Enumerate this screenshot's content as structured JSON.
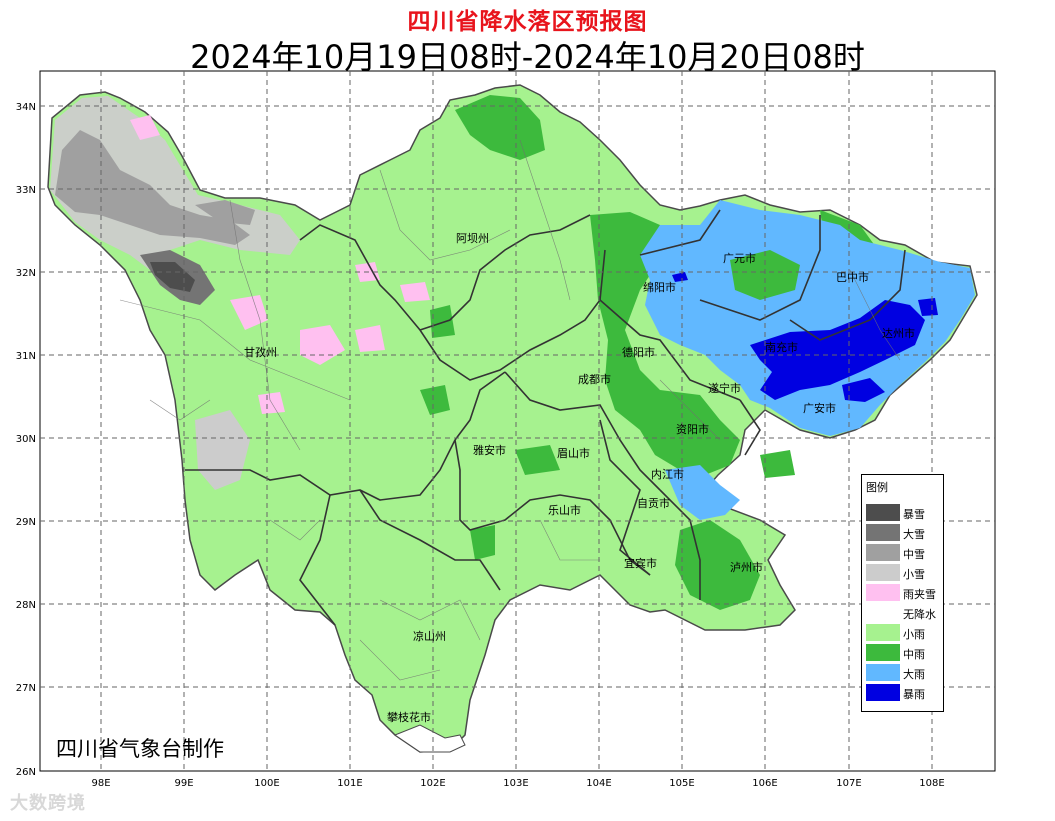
{
  "title": "四川省降水落区预报图",
  "subtitle": "2024年10月19日08时-2024年10月20日08时",
  "credit": "四川省气象台制作",
  "watermark": "大数跨境",
  "axes": {
    "lat_labels": [
      "34N",
      "33N",
      "32N",
      "31N",
      "30N",
      "29N",
      "28N",
      "27N",
      "26N"
    ],
    "lon_labels": [
      "98E",
      "99E",
      "100E",
      "101E",
      "102E",
      "103E",
      "104E",
      "105E",
      "106E",
      "107E",
      "108E"
    ]
  },
  "cities": [
    {
      "name": "阿坝州"
    },
    {
      "name": "甘孜州"
    },
    {
      "name": "绵阳市"
    },
    {
      "name": "广元市"
    },
    {
      "name": "巴中市"
    },
    {
      "name": "达州市"
    },
    {
      "name": "德阳市"
    },
    {
      "name": "南充市"
    },
    {
      "name": "成都市"
    },
    {
      "name": "遂宁市"
    },
    {
      "name": "广安市"
    },
    {
      "name": "雅安市"
    },
    {
      "name": "眉山市"
    },
    {
      "name": "资阳市"
    },
    {
      "name": "内江市"
    },
    {
      "name": "乐山市"
    },
    {
      "name": "自贡市"
    },
    {
      "name": "宜宾市"
    },
    {
      "name": "泸州市"
    },
    {
      "name": "凉山州"
    },
    {
      "name": "攀枝花市"
    }
  ],
  "legend": {
    "title": "图例",
    "items": [
      {
        "label": "暴雪",
        "color": "#4d4d4d"
      },
      {
        "label": "大雪",
        "color": "#747474"
      },
      {
        "label": "中雪",
        "color": "#a0a0a0"
      },
      {
        "label": "小雪",
        "color": "#cccccc"
      },
      {
        "label": "雨夹雪",
        "color": "#ffc0f0"
      },
      {
        "label": "无降水",
        "color": "#ffffff"
      },
      {
        "label": "小雨",
        "color": "#a6f28f"
      },
      {
        "label": "中雨",
        "color": "#3dba3d"
      },
      {
        "label": "大雨",
        "color": "#61b8ff"
      },
      {
        "label": "暴雨",
        "color": "#0000e1"
      }
    ]
  }
}
